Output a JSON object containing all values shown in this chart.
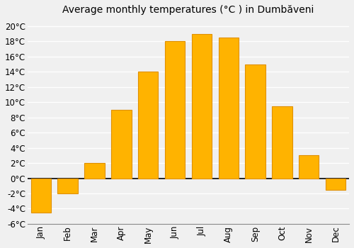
{
  "title": "Average monthly temperatures (°C ) in Dumbăveni",
  "months": [
    "Jan",
    "Feb",
    "Mar",
    "Apr",
    "May",
    "Jun",
    "Jul",
    "Aug",
    "Sep",
    "Oct",
    "Nov",
    "Dec"
  ],
  "temperatures": [
    -4.5,
    -2.0,
    2.0,
    9.0,
    14.0,
    18.0,
    19.0,
    18.5,
    15.0,
    9.5,
    3.0,
    -1.5
  ],
  "bar_color": "#FFB300",
  "bar_edgecolor": "#E09000",
  "ylim": [
    -6,
    21
  ],
  "yticks": [
    -6,
    -4,
    -2,
    0,
    2,
    4,
    6,
    8,
    10,
    12,
    14,
    16,
    18,
    20
  ],
  "background_color": "#f0f0f0",
  "plot_bg_color": "#f0f0f0",
  "grid_color": "#ffffff",
  "title_fontsize": 10,
  "tick_fontsize": 8.5
}
